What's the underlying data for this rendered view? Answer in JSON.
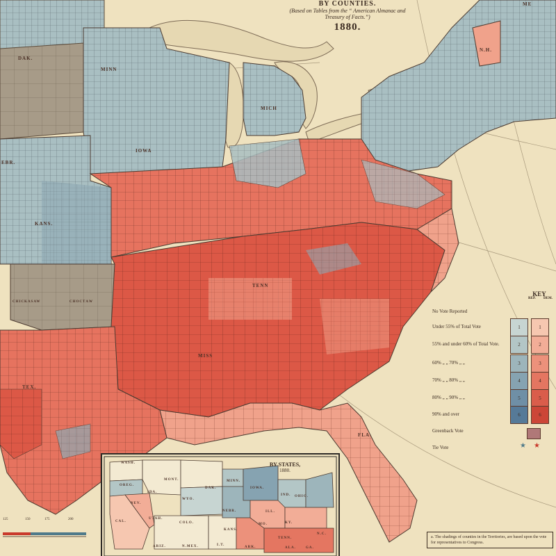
{
  "title": {
    "line1": "BY COUNTIES.",
    "line2a": "(Based on Tables from the “ American Almanac and",
    "line2b": "Treasury of Facts.”)",
    "year": "1880."
  },
  "key": {
    "title": "KEY",
    "rep": "REP.",
    "dem": "DEM.",
    "rows": [
      {
        "label": "No Vote Reported"
      },
      {
        "label": "Under 55% of Total Vote",
        "level": 1
      },
      {
        "label": "55% and under 60% of Total Vote.",
        "level": 2
      },
      {
        "label": "60% „ „ 70% „ „",
        "level": 3
      },
      {
        "label": "70% „ „ 80% „ „",
        "level": 4
      },
      {
        "label": "80% „ „ 90% „ „",
        "level": 5
      },
      {
        "label": "90% and over",
        "level": 6
      },
      {
        "label": "Greenback Vote"
      },
      {
        "label": "Tie Vote"
      }
    ],
    "rep_colors": [
      "#c7d5d2",
      "#b3c6c6",
      "#9db5bb",
      "#86a3b1",
      "#6f8fa6",
      "#567a98"
    ],
    "dem_colors": [
      "#f6c7b0",
      "#f2ad97",
      "#ec917b",
      "#e47661",
      "#da5d4b",
      "#cc4637"
    ],
    "tie_star_colors": [
      "#4f7a8a",
      "#c93a2c"
    ]
  },
  "inset": {
    "title": "BY STATES,",
    "year": "1880."
  },
  "note": {
    "text": "a. The shadings of counties in the Territories, are based upon the vote for representatives to Congress."
  },
  "scale": {
    "ticks": [
      "125",
      "150",
      "175",
      "200"
    ]
  },
  "labels": {
    "dak": "DAK.",
    "iowa": "IOWA",
    "nebr": "EBR.",
    "kans": "KANS.",
    "mich": "MICH",
    "tenn": "TENN",
    "tex": "TEX.",
    "miss": "MISS",
    "fla": "FLA",
    "minn": "MINN",
    "me": "ME",
    "nh": "N.H.",
    "chickasaw": "CHICKASAW",
    "choctaw": "CHOCTАW",
    "wash": "WASH.",
    "ore": "OREG.",
    "mont": "MONT.",
    "ida": "IDA.",
    "wyo": "WYO.",
    "dak2": "DAK.",
    "minn2": "MINN.",
    "nev": "NEV.",
    "cal": "CAL.",
    "utah": "UTAH.",
    "colo": "COLO.",
    "nebr2": "NEBR.",
    "iowa2": "IOWA.",
    "kans2": "KANS.",
    "mo": "MO.",
    "arizona": "ARIZ.",
    "nmex": "N.MEX.",
    "it": "I.T.",
    "ark": "ARK.",
    "tenn2": "TENN.",
    "ky": "KY.",
    "ohio": "OHIO.",
    "ill": "ILL.",
    "ind": "IND.",
    "nc": "N.C.",
    "ga": "GA.",
    "ala": "ALA."
  },
  "map_colors": {
    "paper": "#efe2bf",
    "water": "#e6d8b2",
    "territory_gray": "#a89c8a",
    "inset_white": "#f3ead2"
  }
}
